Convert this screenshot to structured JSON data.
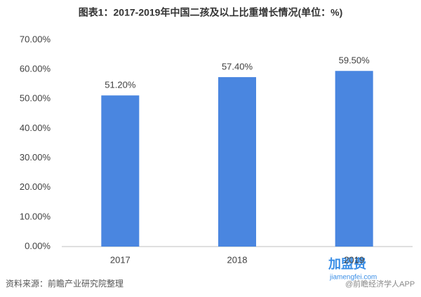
{
  "chart_data": {
    "type": "bar",
    "title": "图表1：2017-2019年中国二孩及以上比重增长情况(单位：%)",
    "categories": [
      "2017",
      "2018",
      "2019"
    ],
    "values": [
      51.2,
      57.4,
      59.5
    ],
    "value_labels": [
      "51.20%",
      "57.40%",
      "59.50%"
    ],
    "color": "#4a86e0",
    "ylim": [
      0,
      70
    ],
    "yticks": [
      {
        "value": 0,
        "label": "0.00%"
      },
      {
        "value": 10,
        "label": "10.00%"
      },
      {
        "value": 20,
        "label": "20.00%"
      },
      {
        "value": 30,
        "label": "30.00%"
      },
      {
        "value": 40,
        "label": "40.00%"
      },
      {
        "value": 50,
        "label": "50.00%"
      },
      {
        "value": 60,
        "label": "60.00%"
      },
      {
        "value": 70,
        "label": "70.00%"
      }
    ],
    "grid": false,
    "source": "资料来源：前瞻产业研究院整理",
    "watermark": {
      "logo": "加盟费",
      "site": "jiamengfei.com",
      "app": "@前瞻经济学人APP"
    }
  }
}
